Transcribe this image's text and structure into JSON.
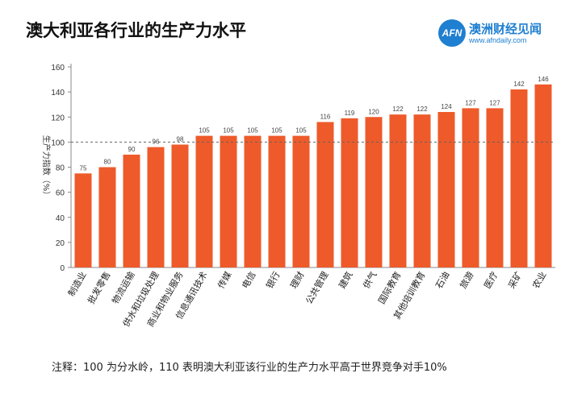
{
  "title": "澳大利亚各行业的生产力水平",
  "logo": {
    "mark": "AFN",
    "name": "澳洲财经见闻",
    "url": "www.afndaily.com",
    "color": "#1f7fd0"
  },
  "note": "注释：100 为分水岭，110 表明澳大利亚该行业的生产力水平高于世界竞争对手10%",
  "chart_data": {
    "type": "bar",
    "ylabel": "生产力指数（%）",
    "ylim": [
      0,
      160
    ],
    "yticks": [
      0,
      20,
      40,
      60,
      80,
      100,
      120,
      140,
      160
    ],
    "reference_line": 100,
    "bar_color": "#ee5a2a",
    "categories": [
      "制造业",
      "批发零售",
      "物流运输",
      "供水和垃圾处理",
      "商业和物业服务",
      "信息通讯技术",
      "传媒",
      "电信",
      "银行",
      "理财",
      "公共管理",
      "建筑",
      "供气",
      "国际教育",
      "其他培训教育",
      "石油",
      "旅游",
      "医疗",
      "采矿",
      "农业"
    ],
    "values": [
      75,
      80,
      90,
      96,
      98,
      105,
      105,
      105,
      105,
      105,
      116,
      119,
      120,
      122,
      122,
      124,
      127,
      127,
      142,
      146
    ]
  }
}
